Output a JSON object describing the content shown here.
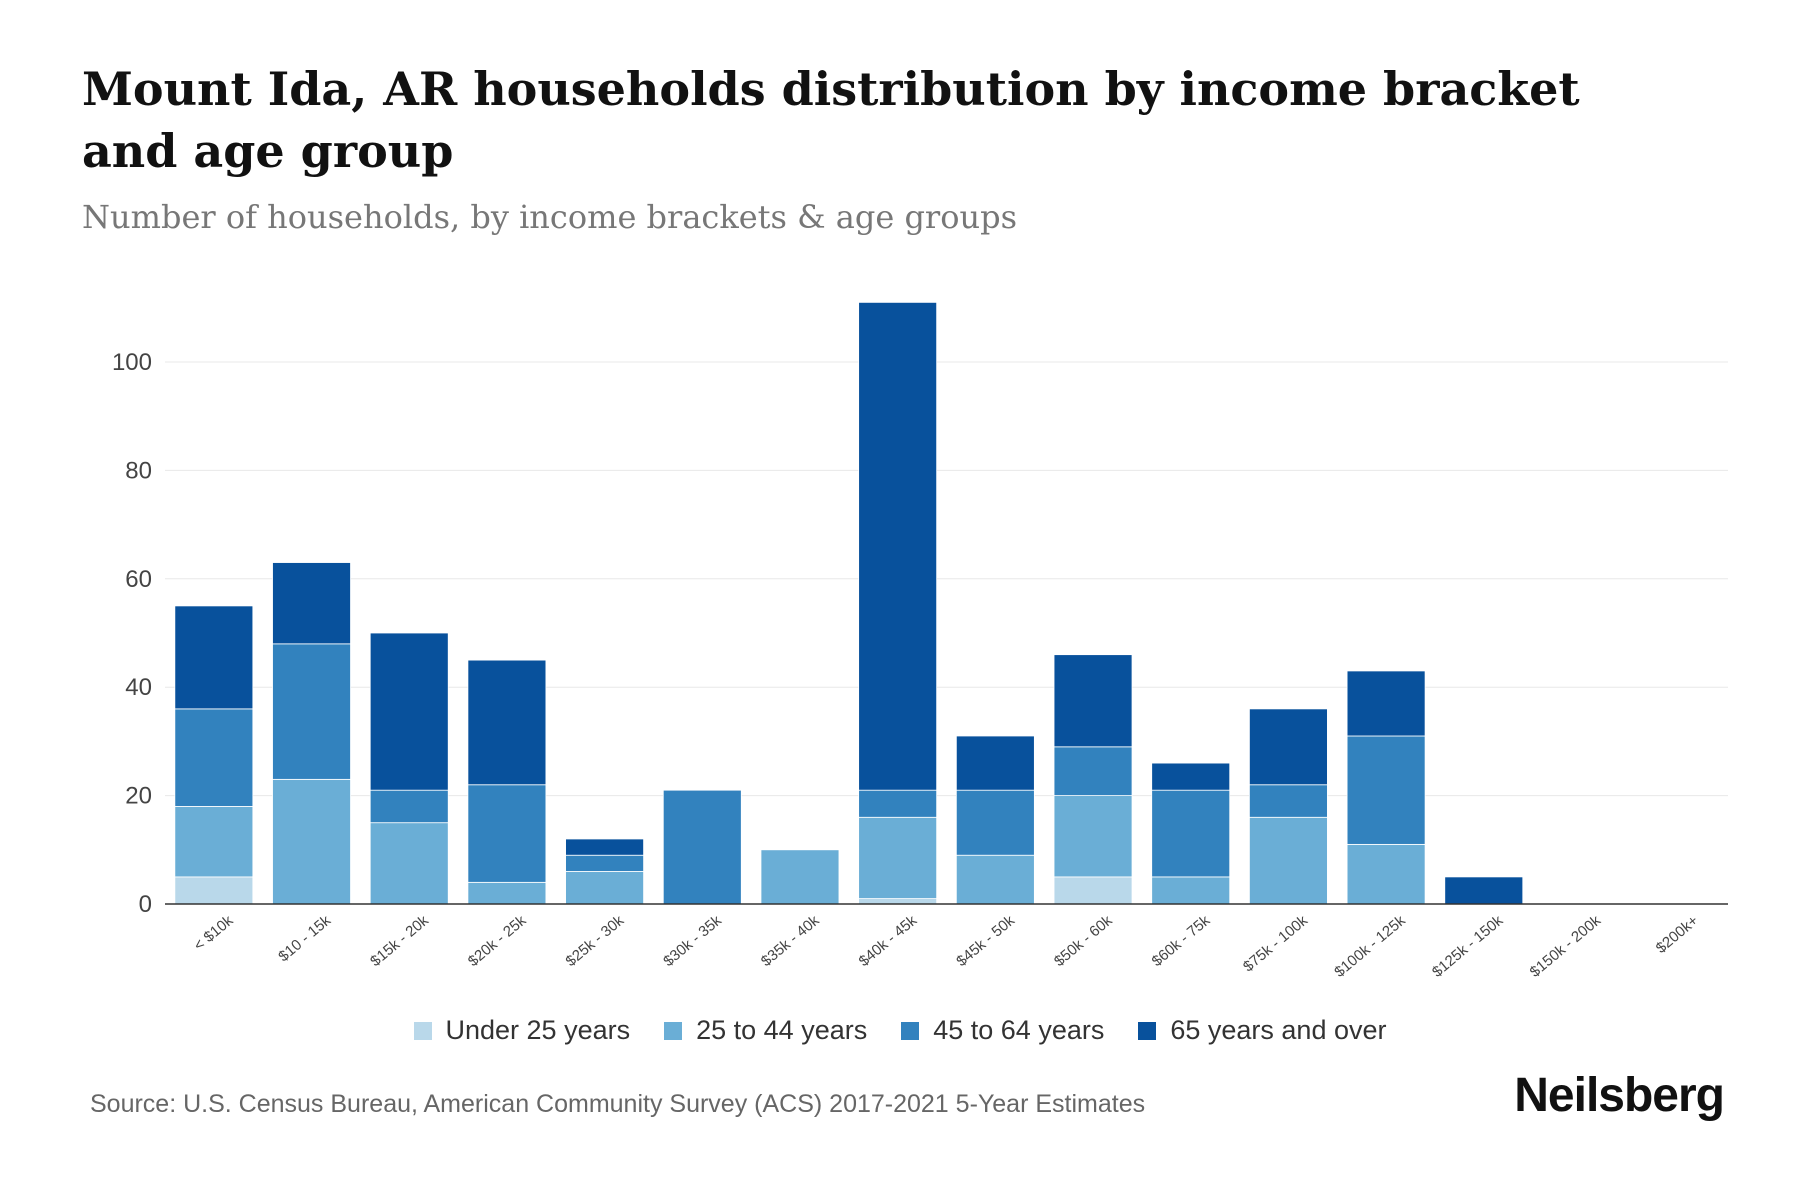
{
  "title": "Mount Ida, AR households distribution by income bracket and age group",
  "subtitle": "Number of households, by income brackets & age groups",
  "source": "Source: U.S. Census Bureau, American Community Survey (ACS) 2017-2021 5-Year Estimates",
  "brand": "Neilsberg",
  "colors": {
    "under_25": "#b9d8ea",
    "age_25_44": "#6aaed6",
    "age_45_64": "#3282be",
    "age_65_plus": "#08519c",
    "axis": "#333333",
    "grid": "#e8e8e8"
  },
  "chart_data": {
    "type": "bar",
    "stacked": true,
    "title": "Mount Ida, AR households distribution by income bracket and age group",
    "subtitle": "Number of households, by income brackets & age groups",
    "xlabel": "",
    "ylabel": "",
    "ylim": [
      0,
      115
    ],
    "yticks": [
      0,
      20,
      40,
      60,
      80,
      100
    ],
    "grid": true,
    "legend_position": "bottom",
    "categories": [
      "< $10k",
      "$10 - 15k",
      "$15k - 20k",
      "$20k - 25k",
      "$25k - 30k",
      "$30k - 35k",
      "$35k - 40k",
      "$40k - 45k",
      "$45k - 50k",
      "$50k - 60k",
      "$60k - 75k",
      "$75k - 100k",
      "$100k - 125k",
      "$125k - 150k",
      "$150k - 200k",
      "$200k+"
    ],
    "series": [
      {
        "name": "Under 25 years",
        "values": [
          5,
          0,
          0,
          0,
          0,
          0,
          0,
          1,
          0,
          5,
          0,
          0,
          0,
          0,
          0,
          0
        ]
      },
      {
        "name": "25 to 44 years",
        "values": [
          13,
          23,
          15,
          4,
          6,
          0,
          10,
          15,
          9,
          15,
          5,
          16,
          11,
          0,
          0,
          0
        ]
      },
      {
        "name": "45 to 64 years",
        "values": [
          18,
          25,
          6,
          18,
          3,
          21,
          0,
          5,
          12,
          9,
          16,
          6,
          20,
          0,
          0,
          0
        ]
      },
      {
        "name": "65 years and over",
        "values": [
          19,
          15,
          29,
          23,
          3,
          0,
          0,
          90,
          10,
          17,
          5,
          14,
          12,
          5,
          0,
          0
        ]
      }
    ]
  }
}
